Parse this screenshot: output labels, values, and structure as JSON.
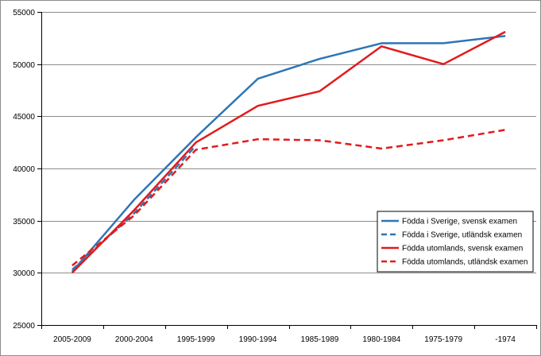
{
  "chart_data": {
    "type": "line",
    "title": "",
    "xlabel": "",
    "ylabel": "",
    "categories": [
      "2005-2009",
      "2000-2004",
      "1995-1999",
      "1990-1994",
      "1985-1989",
      "1980-1984",
      "1975-1979",
      "-1974"
    ],
    "ylim": [
      25000,
      55000
    ],
    "yticks": [
      25000,
      30000,
      35000,
      40000,
      45000,
      50000,
      55000
    ],
    "grid": true,
    "legend_position": "right",
    "series": [
      {
        "name": "Födda i Sverige, svensk examen",
        "color": "#2e75b6",
        "dash": "solid",
        "values": [
          30100,
          37000,
          43000,
          48600,
          50500,
          52000,
          52000,
          52700
        ]
      },
      {
        "name": "Födda i Sverige, utländsk examen",
        "color": "#2e75b6",
        "dash": "dashed",
        "values": [
          30300,
          35700,
          42200,
          null,
          null,
          null,
          null,
          null
        ]
      },
      {
        "name": "Födda utomlands, svensk examen",
        "color": "#e31a1c",
        "dash": "solid",
        "values": [
          30000,
          36000,
          42500,
          46000,
          47400,
          51700,
          50000,
          53100
        ]
      },
      {
        "name": "Födda utomlands, utländsk examen",
        "color": "#e31a1c",
        "dash": "dashed",
        "values": [
          30700,
          35500,
          41800,
          42800,
          42700,
          41900,
          42700,
          43700
        ]
      }
    ]
  }
}
